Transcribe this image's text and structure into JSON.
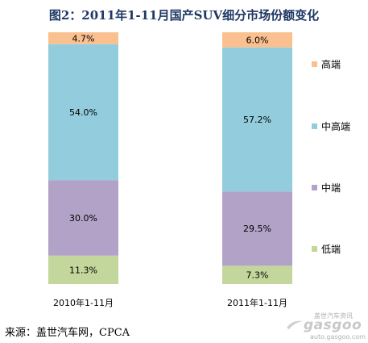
{
  "chart_data": {
    "type": "bar",
    "stacked": true,
    "percent": true,
    "title": "图2：2011年1-11月国产SUV细分市场份额变化",
    "categories": [
      "2010年1-11月",
      "2011年1-11月"
    ],
    "series": [
      {
        "name": "低端",
        "values": [
          11.3,
          7.3
        ],
        "labels": [
          "11.3%",
          "7.3%"
        ],
        "color": "#c3d69b"
      },
      {
        "name": "中端",
        "values": [
          30.0,
          29.5
        ],
        "labels": [
          "30.0%",
          "29.5%"
        ],
        "color": "#b3a2c7"
      },
      {
        "name": "中高端",
        "values": [
          54.0,
          57.2
        ],
        "labels": [
          "54.0%",
          "57.2%"
        ],
        "color": "#93cddd"
      },
      {
        "name": "高端",
        "values": [
          4.7,
          6.0
        ],
        "labels": [
          "4.7%",
          "6.0%"
        ],
        "color": "#fac090"
      }
    ],
    "ylim": [
      0,
      100
    ],
    "grid": false,
    "legend": "right"
  },
  "source": "来源：盖世汽车网，CPCA",
  "watermark": {
    "top_text": "盖世汽车资讯",
    "logo": "gasgoo",
    "url": "auto.gasgoo.com",
    "icon": "gasgoo-swoosh-logo"
  }
}
